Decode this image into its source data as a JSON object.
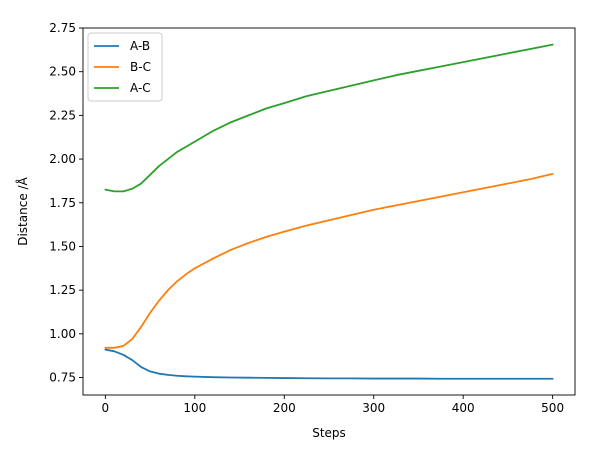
{
  "chart_data": {
    "type": "line",
    "title": "",
    "xlabel": "Steps",
    "ylabel": "Distance /Å",
    "xlim": [
      -25,
      525
    ],
    "ylim": [
      0.65,
      2.75
    ],
    "xticks": [
      0,
      100,
      200,
      300,
      400,
      500
    ],
    "xtick_labels": [
      "0",
      "100",
      "200",
      "300",
      "400",
      "500"
    ],
    "yticks": [
      0.75,
      1.0,
      1.25,
      1.5,
      1.75,
      2.0,
      2.25,
      2.5,
      2.75
    ],
    "ytick_labels": [
      "0.75",
      "1.00",
      "1.25",
      "1.50",
      "1.75",
      "2.00",
      "2.25",
      "2.50",
      "2.75"
    ],
    "grid": false,
    "legend_position": "top-left",
    "x": [
      0,
      10,
      20,
      30,
      40,
      50,
      60,
      70,
      80,
      90,
      100,
      120,
      140,
      160,
      180,
      200,
      225,
      250,
      275,
      300,
      325,
      350,
      375,
      400,
      425,
      450,
      475,
      500
    ],
    "series": [
      {
        "name": "A-B",
        "color": "#1f77b4",
        "values": [
          0.91,
          0.9,
          0.88,
          0.85,
          0.81,
          0.785,
          0.772,
          0.765,
          0.76,
          0.757,
          0.755,
          0.752,
          0.75,
          0.749,
          0.748,
          0.747,
          0.746,
          0.745,
          0.745,
          0.744,
          0.744,
          0.744,
          0.743,
          0.743,
          0.743,
          0.743,
          0.743,
          0.743
        ]
      },
      {
        "name": "B-C",
        "color": "#ff7f0e",
        "values": [
          0.92,
          0.92,
          0.93,
          0.97,
          1.04,
          1.12,
          1.19,
          1.25,
          1.3,
          1.34,
          1.375,
          1.43,
          1.48,
          1.52,
          1.555,
          1.585,
          1.62,
          1.65,
          1.68,
          1.71,
          1.735,
          1.76,
          1.785,
          1.81,
          1.835,
          1.86,
          1.885,
          1.915
        ]
      },
      {
        "name": "A-C",
        "color": "#2ca02c",
        "values": [
          1.825,
          1.815,
          1.815,
          1.83,
          1.86,
          1.91,
          1.96,
          2.0,
          2.04,
          2.07,
          2.1,
          2.16,
          2.21,
          2.25,
          2.29,
          2.32,
          2.36,
          2.39,
          2.42,
          2.45,
          2.48,
          2.505,
          2.53,
          2.555,
          2.58,
          2.605,
          2.63,
          2.655
        ]
      }
    ]
  }
}
